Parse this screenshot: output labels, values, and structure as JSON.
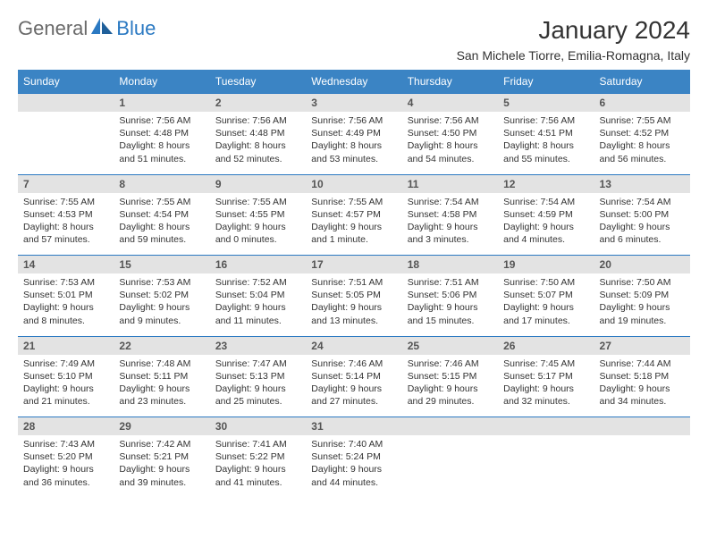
{
  "brand": {
    "general": "General",
    "blue": "Blue"
  },
  "title": "January 2024",
  "location": "San Michele Tiorre, Emilia-Romagna, Italy",
  "colors": {
    "header_bg": "#3b84c4",
    "border": "#2b79c2",
    "daynum_bg": "#e3e3e3",
    "text": "#333333",
    "logo_gray": "#6a6a6a",
    "logo_blue": "#2b79c2",
    "background": "#ffffff"
  },
  "typography": {
    "title_fontsize": 28,
    "location_fontsize": 14,
    "header_fontsize": 12,
    "daynum_fontsize": 12,
    "cell_fontsize": 10.5
  },
  "weekdays": [
    "Sunday",
    "Monday",
    "Tuesday",
    "Wednesday",
    "Thursday",
    "Friday",
    "Saturday"
  ],
  "weeks": [
    [
      null,
      {
        "n": "1",
        "sr": "Sunrise: 7:56 AM",
        "ss": "Sunset: 4:48 PM",
        "d1": "Daylight: 8 hours",
        "d2": "and 51 minutes."
      },
      {
        "n": "2",
        "sr": "Sunrise: 7:56 AM",
        "ss": "Sunset: 4:48 PM",
        "d1": "Daylight: 8 hours",
        "d2": "and 52 minutes."
      },
      {
        "n": "3",
        "sr": "Sunrise: 7:56 AM",
        "ss": "Sunset: 4:49 PM",
        "d1": "Daylight: 8 hours",
        "d2": "and 53 minutes."
      },
      {
        "n": "4",
        "sr": "Sunrise: 7:56 AM",
        "ss": "Sunset: 4:50 PM",
        "d1": "Daylight: 8 hours",
        "d2": "and 54 minutes."
      },
      {
        "n": "5",
        "sr": "Sunrise: 7:56 AM",
        "ss": "Sunset: 4:51 PM",
        "d1": "Daylight: 8 hours",
        "d2": "and 55 minutes."
      },
      {
        "n": "6",
        "sr": "Sunrise: 7:55 AM",
        "ss": "Sunset: 4:52 PM",
        "d1": "Daylight: 8 hours",
        "d2": "and 56 minutes."
      }
    ],
    [
      {
        "n": "7",
        "sr": "Sunrise: 7:55 AM",
        "ss": "Sunset: 4:53 PM",
        "d1": "Daylight: 8 hours",
        "d2": "and 57 minutes."
      },
      {
        "n": "8",
        "sr": "Sunrise: 7:55 AM",
        "ss": "Sunset: 4:54 PM",
        "d1": "Daylight: 8 hours",
        "d2": "and 59 minutes."
      },
      {
        "n": "9",
        "sr": "Sunrise: 7:55 AM",
        "ss": "Sunset: 4:55 PM",
        "d1": "Daylight: 9 hours",
        "d2": "and 0 minutes."
      },
      {
        "n": "10",
        "sr": "Sunrise: 7:55 AM",
        "ss": "Sunset: 4:57 PM",
        "d1": "Daylight: 9 hours",
        "d2": "and 1 minute."
      },
      {
        "n": "11",
        "sr": "Sunrise: 7:54 AM",
        "ss": "Sunset: 4:58 PM",
        "d1": "Daylight: 9 hours",
        "d2": "and 3 minutes."
      },
      {
        "n": "12",
        "sr": "Sunrise: 7:54 AM",
        "ss": "Sunset: 4:59 PM",
        "d1": "Daylight: 9 hours",
        "d2": "and 4 minutes."
      },
      {
        "n": "13",
        "sr": "Sunrise: 7:54 AM",
        "ss": "Sunset: 5:00 PM",
        "d1": "Daylight: 9 hours",
        "d2": "and 6 minutes."
      }
    ],
    [
      {
        "n": "14",
        "sr": "Sunrise: 7:53 AM",
        "ss": "Sunset: 5:01 PM",
        "d1": "Daylight: 9 hours",
        "d2": "and 8 minutes."
      },
      {
        "n": "15",
        "sr": "Sunrise: 7:53 AM",
        "ss": "Sunset: 5:02 PM",
        "d1": "Daylight: 9 hours",
        "d2": "and 9 minutes."
      },
      {
        "n": "16",
        "sr": "Sunrise: 7:52 AM",
        "ss": "Sunset: 5:04 PM",
        "d1": "Daylight: 9 hours",
        "d2": "and 11 minutes."
      },
      {
        "n": "17",
        "sr": "Sunrise: 7:51 AM",
        "ss": "Sunset: 5:05 PM",
        "d1": "Daylight: 9 hours",
        "d2": "and 13 minutes."
      },
      {
        "n": "18",
        "sr": "Sunrise: 7:51 AM",
        "ss": "Sunset: 5:06 PM",
        "d1": "Daylight: 9 hours",
        "d2": "and 15 minutes."
      },
      {
        "n": "19",
        "sr": "Sunrise: 7:50 AM",
        "ss": "Sunset: 5:07 PM",
        "d1": "Daylight: 9 hours",
        "d2": "and 17 minutes."
      },
      {
        "n": "20",
        "sr": "Sunrise: 7:50 AM",
        "ss": "Sunset: 5:09 PM",
        "d1": "Daylight: 9 hours",
        "d2": "and 19 minutes."
      }
    ],
    [
      {
        "n": "21",
        "sr": "Sunrise: 7:49 AM",
        "ss": "Sunset: 5:10 PM",
        "d1": "Daylight: 9 hours",
        "d2": "and 21 minutes."
      },
      {
        "n": "22",
        "sr": "Sunrise: 7:48 AM",
        "ss": "Sunset: 5:11 PM",
        "d1": "Daylight: 9 hours",
        "d2": "and 23 minutes."
      },
      {
        "n": "23",
        "sr": "Sunrise: 7:47 AM",
        "ss": "Sunset: 5:13 PM",
        "d1": "Daylight: 9 hours",
        "d2": "and 25 minutes."
      },
      {
        "n": "24",
        "sr": "Sunrise: 7:46 AM",
        "ss": "Sunset: 5:14 PM",
        "d1": "Daylight: 9 hours",
        "d2": "and 27 minutes."
      },
      {
        "n": "25",
        "sr": "Sunrise: 7:46 AM",
        "ss": "Sunset: 5:15 PM",
        "d1": "Daylight: 9 hours",
        "d2": "and 29 minutes."
      },
      {
        "n": "26",
        "sr": "Sunrise: 7:45 AM",
        "ss": "Sunset: 5:17 PM",
        "d1": "Daylight: 9 hours",
        "d2": "and 32 minutes."
      },
      {
        "n": "27",
        "sr": "Sunrise: 7:44 AM",
        "ss": "Sunset: 5:18 PM",
        "d1": "Daylight: 9 hours",
        "d2": "and 34 minutes."
      }
    ],
    [
      {
        "n": "28",
        "sr": "Sunrise: 7:43 AM",
        "ss": "Sunset: 5:20 PM",
        "d1": "Daylight: 9 hours",
        "d2": "and 36 minutes."
      },
      {
        "n": "29",
        "sr": "Sunrise: 7:42 AM",
        "ss": "Sunset: 5:21 PM",
        "d1": "Daylight: 9 hours",
        "d2": "and 39 minutes."
      },
      {
        "n": "30",
        "sr": "Sunrise: 7:41 AM",
        "ss": "Sunset: 5:22 PM",
        "d1": "Daylight: 9 hours",
        "d2": "and 41 minutes."
      },
      {
        "n": "31",
        "sr": "Sunrise: 7:40 AM",
        "ss": "Sunset: 5:24 PM",
        "d1": "Daylight: 9 hours",
        "d2": "and 44 minutes."
      },
      null,
      null,
      null
    ]
  ]
}
